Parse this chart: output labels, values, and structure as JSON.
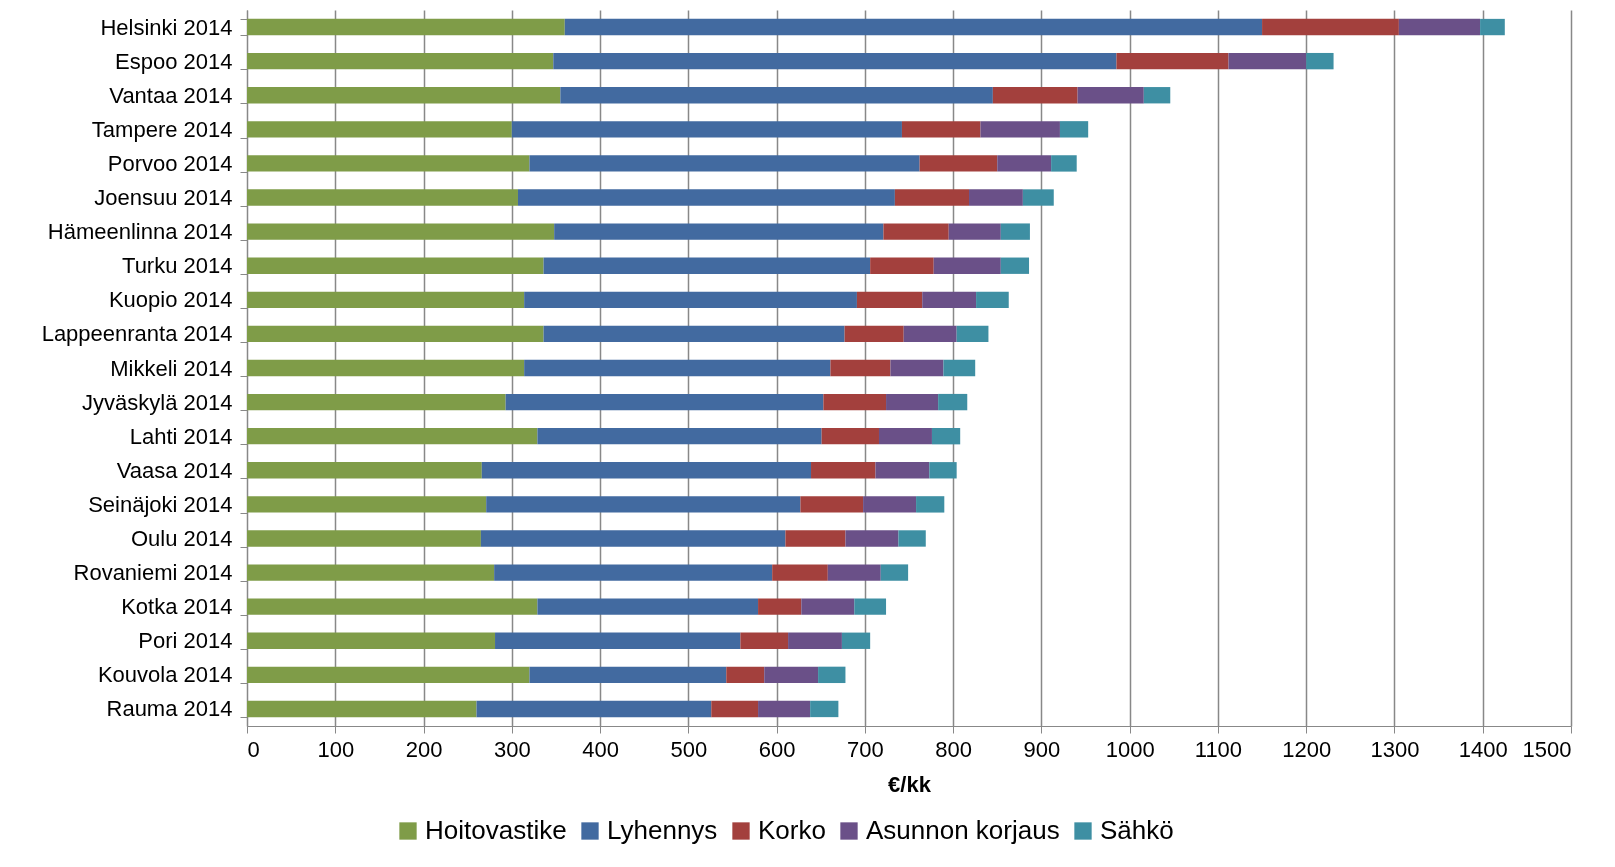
{
  "chart_data": {
    "type": "bar",
    "orientation": "horizontal",
    "stacked": true,
    "xlabel": "€/kk",
    "categories": [
      "Helsinki 2014",
      "Espoo 2014",
      "Vantaa 2014",
      "Tampere 2014",
      "Porvoo 2014",
      "Joensuu 2014",
      "Hämeenlinna 2014",
      "Turku 2014",
      "Kuopio 2014",
      "Lappeenranta 2014",
      "Mikkeli 2014",
      "Jyväskylä 2014",
      "Lahti 2014",
      "Vaasa 2014",
      "Seinäjoki 2014",
      "Oulu 2014",
      "Rovaniemi 2014",
      "Kotka 2014",
      "Pori 2014",
      "Kouvola 2014",
      "Rauma 2014"
    ],
    "series": [
      {
        "name": "Hoitovastike",
        "color": "#7f9c48",
        "values": [
          360,
          347,
          355,
          300,
          320,
          307,
          348,
          336,
          314,
          336,
          314,
          293,
          329,
          266,
          271,
          265,
          280,
          329,
          281,
          320,
          260
        ]
      },
      {
        "name": "Lyhennys",
        "color": "#426aa0",
        "values": [
          790,
          638,
          490,
          442,
          442,
          427,
          373,
          370,
          377,
          341,
          347,
          360,
          322,
          373,
          356,
          345,
          315,
          250,
          278,
          223,
          266
        ]
      },
      {
        "name": "Korko",
        "color": "#a3403d",
        "values": [
          155,
          127,
          96,
          89,
          88,
          84,
          74,
          72,
          74,
          67,
          68,
          71,
          65,
          73,
          71,
          68,
          63,
          49,
          54,
          43,
          53
        ]
      },
      {
        "name": "Asunnon korjaus",
        "color": "#6a5088",
        "values": [
          92,
          88,
          75,
          90,
          61,
          61,
          59,
          76,
          61,
          60,
          60,
          59,
          60,
          61,
          60,
          60,
          60,
          60,
          61,
          61,
          59
        ]
      },
      {
        "name": "Sähkö",
        "color": "#3e8fa3",
        "values": [
          28,
          31,
          30,
          32,
          29,
          35,
          33,
          32,
          37,
          36,
          36,
          33,
          32,
          31,
          32,
          31,
          31,
          36,
          32,
          31,
          32
        ]
      }
    ],
    "xlim": [
      0,
      1500
    ],
    "xticks": [
      0,
      100,
      200,
      300,
      400,
      500,
      600,
      700,
      800,
      900,
      1000,
      1100,
      1200,
      1300,
      1400,
      1500
    ],
    "grid": "x",
    "legend": "bottom"
  }
}
